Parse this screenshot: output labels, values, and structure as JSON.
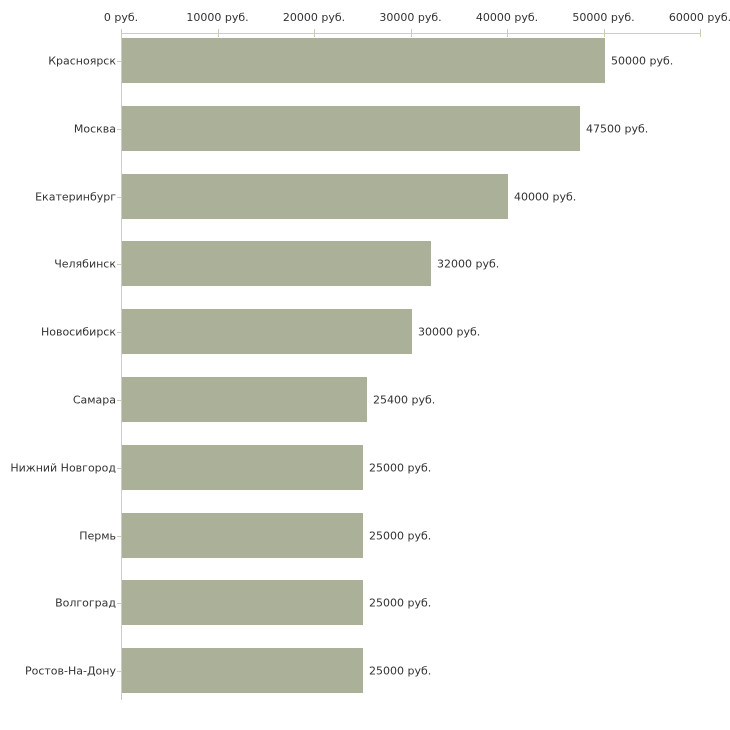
{
  "chart_data": {
    "type": "bar",
    "orientation": "horizontal",
    "title": "",
    "xlabel": "",
    "ylabel": "",
    "unit": "руб.",
    "xlim": [
      0,
      60000
    ],
    "x_ticks": [
      0,
      10000,
      20000,
      30000,
      40000,
      50000,
      60000
    ],
    "x_tick_labels": [
      "0 руб.",
      "10000 руб.",
      "20000 руб.",
      "30000 руб.",
      "40000 руб.",
      "50000 руб.",
      "60000 руб."
    ],
    "categories": [
      "Красноярск",
      "Москва",
      "Екатеринбург",
      "Челябинск",
      "Новосибирск",
      "Самара",
      "Нижний Новгород",
      "Пермь",
      "Волгоград",
      "Ростов-На-Дону"
    ],
    "values": [
      50000,
      47500,
      40000,
      32000,
      30000,
      25400,
      25000,
      25000,
      25000,
      25000
    ],
    "value_labels": [
      "50000 руб.",
      "47500 руб.",
      "40000 руб.",
      "32000 руб.",
      "30000 руб.",
      "25400 руб.",
      "25000 руб.",
      "25000 руб.",
      "25000 руб.",
      "25000 руб."
    ],
    "grid": false,
    "legend": "none",
    "colors": {
      "bar": "#abb199",
      "axis_line": "#cccccc",
      "tick_mark": "#ccccb3",
      "text": "#333333",
      "background": "#ffffff"
    }
  }
}
